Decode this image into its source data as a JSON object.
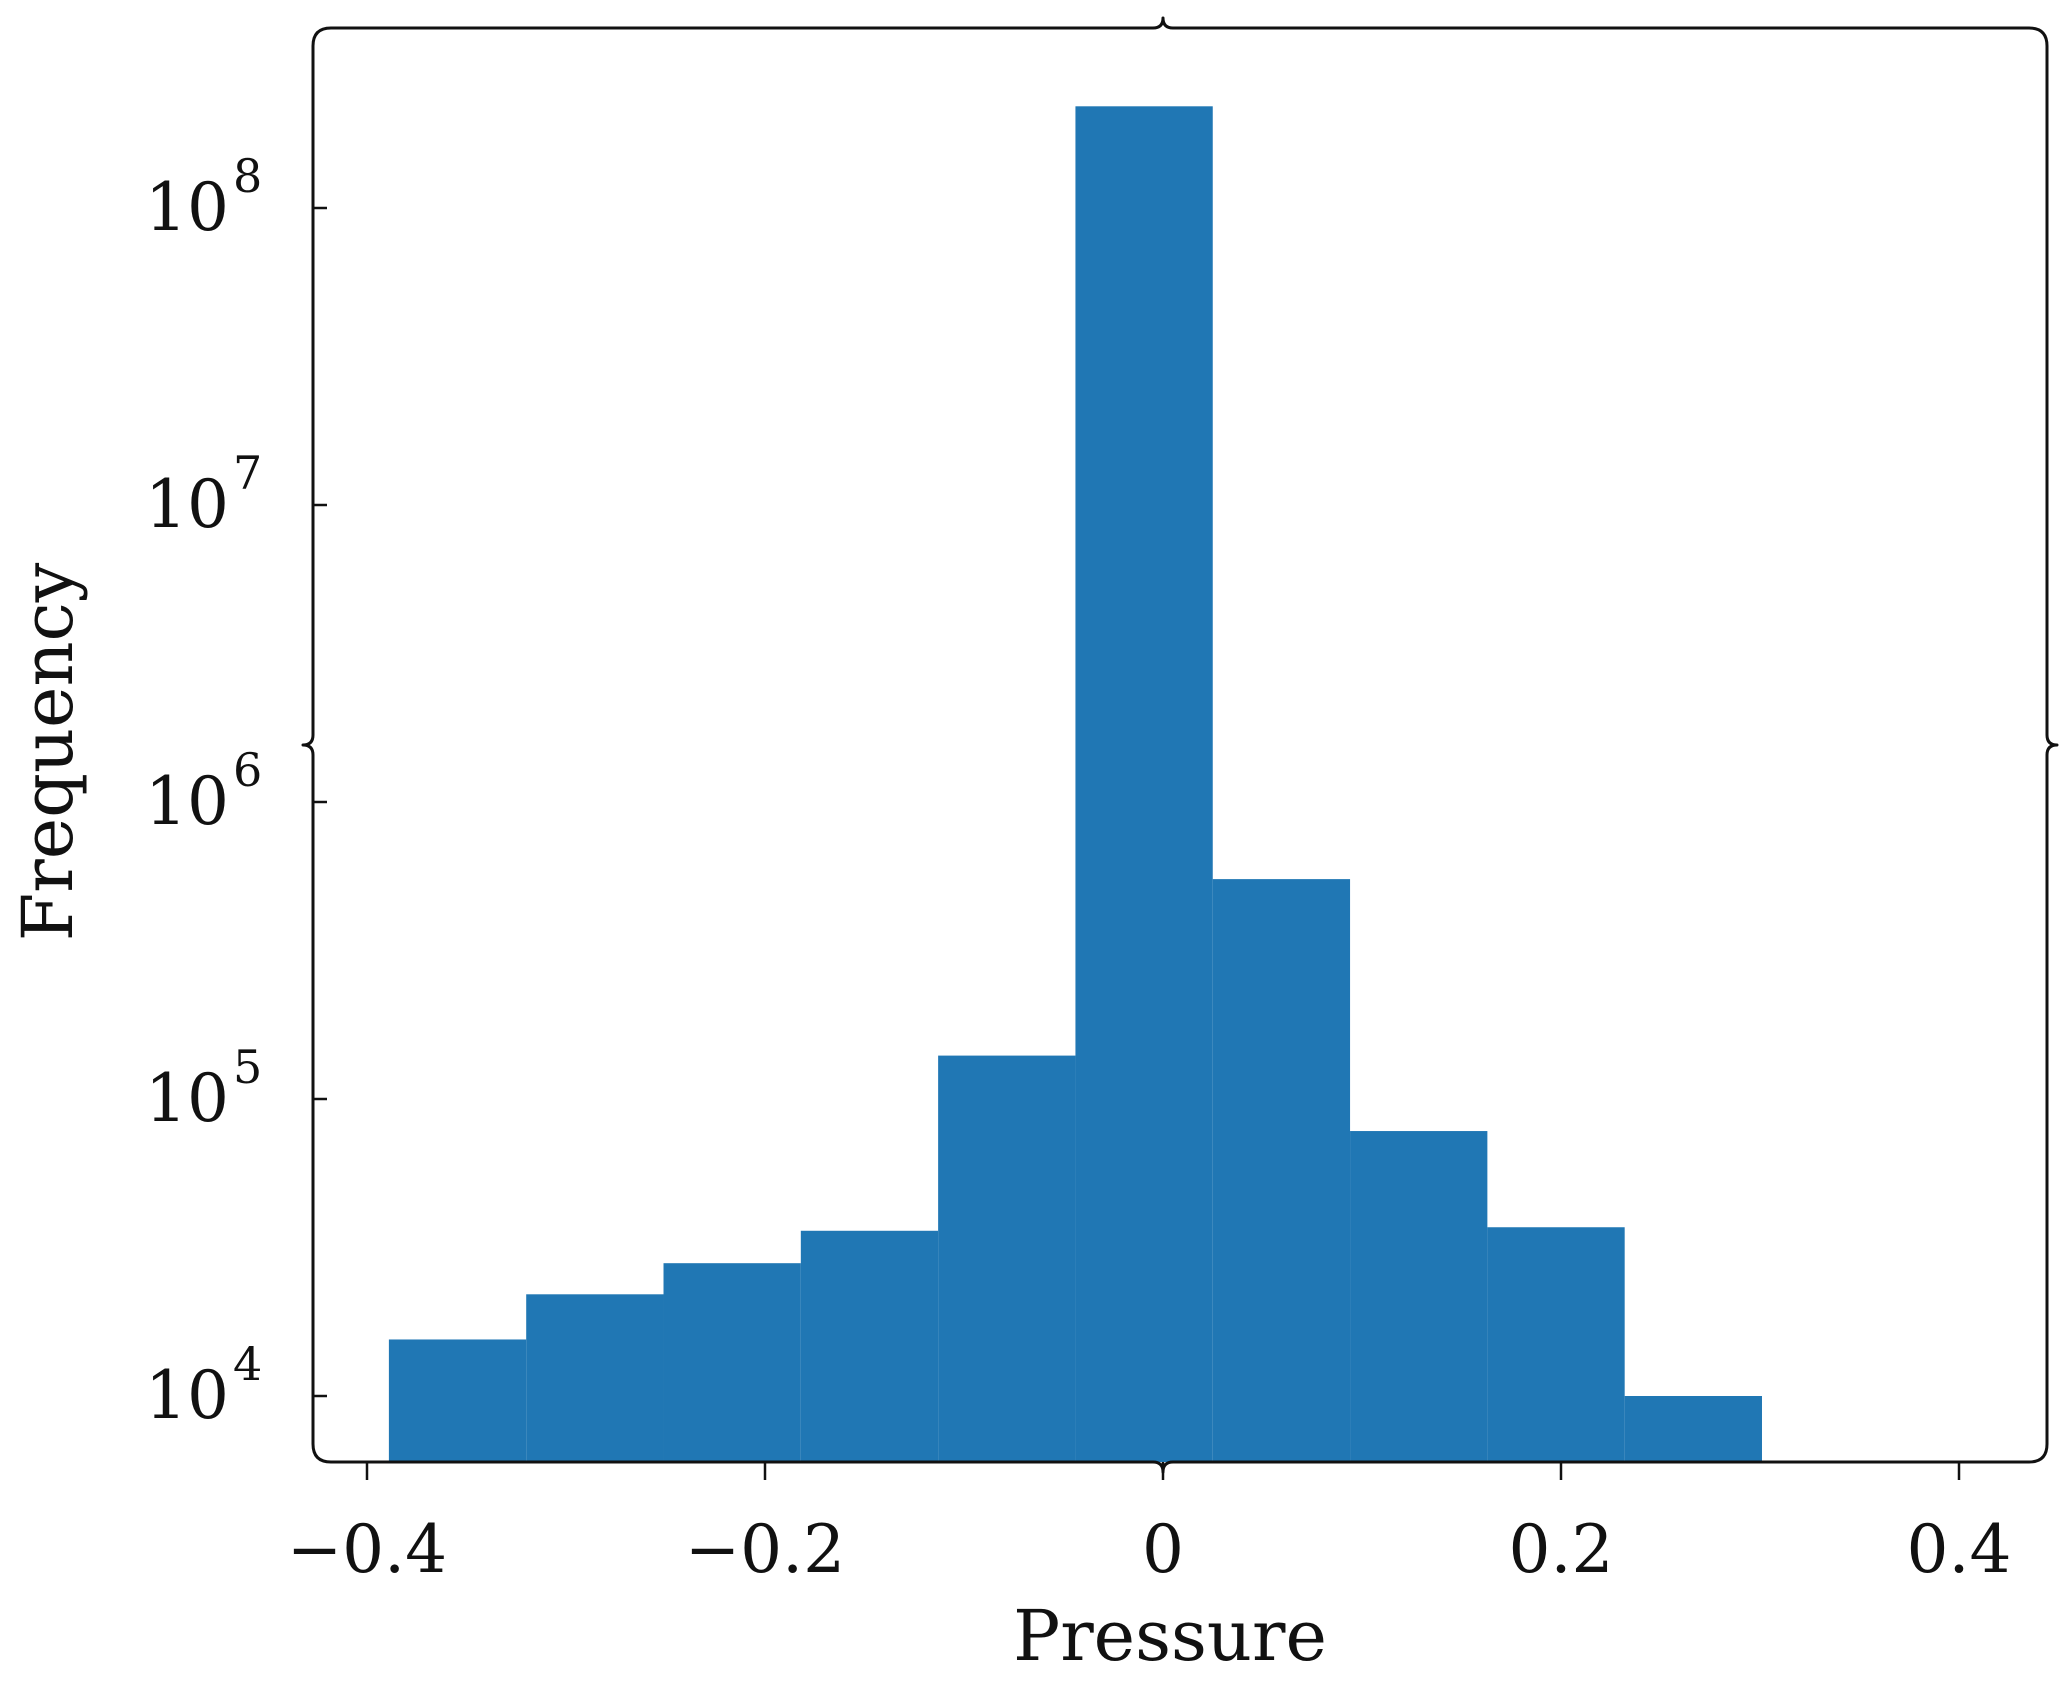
{
  "chart_data": {
    "type": "bar",
    "subtype": "histogram",
    "xlabel": "Pressure",
    "ylabel": "Frequency",
    "yscale": "log",
    "xlim": [
      -0.42,
      0.42
    ],
    "ylim": [
      6000,
      400000000
    ],
    "x_ticks": [
      {
        "value": -0.4,
        "label": "−0.4"
      },
      {
        "value": -0.2,
        "label": "−0.2"
      },
      {
        "value": 0,
        "label": "0"
      },
      {
        "value": 0.2,
        "label": "0.2"
      },
      {
        "value": 0.4,
        "label": "0.4"
      }
    ],
    "y_ticks": [
      {
        "value": 10000,
        "base": "10",
        "exp": "4"
      },
      {
        "value": 100000,
        "base": "10",
        "exp": "5"
      },
      {
        "value": 1000000,
        "base": "10",
        "exp": "6"
      },
      {
        "value": 10000000,
        "base": "10",
        "exp": "7"
      },
      {
        "value": 100000000,
        "base": "10",
        "exp": "8"
      }
    ],
    "bin_edges": [
      -0.389,
      -0.32,
      -0.251,
      -0.182,
      -0.113,
      -0.044,
      0.025,
      0.094,
      0.163,
      0.232,
      0.301
    ],
    "values": [
      15500,
      22000,
      28000,
      36000,
      140000,
      220000000,
      550000,
      78000,
      37000,
      10000
    ],
    "bar_color": "#2077b4",
    "grid": false,
    "legend": "none"
  }
}
